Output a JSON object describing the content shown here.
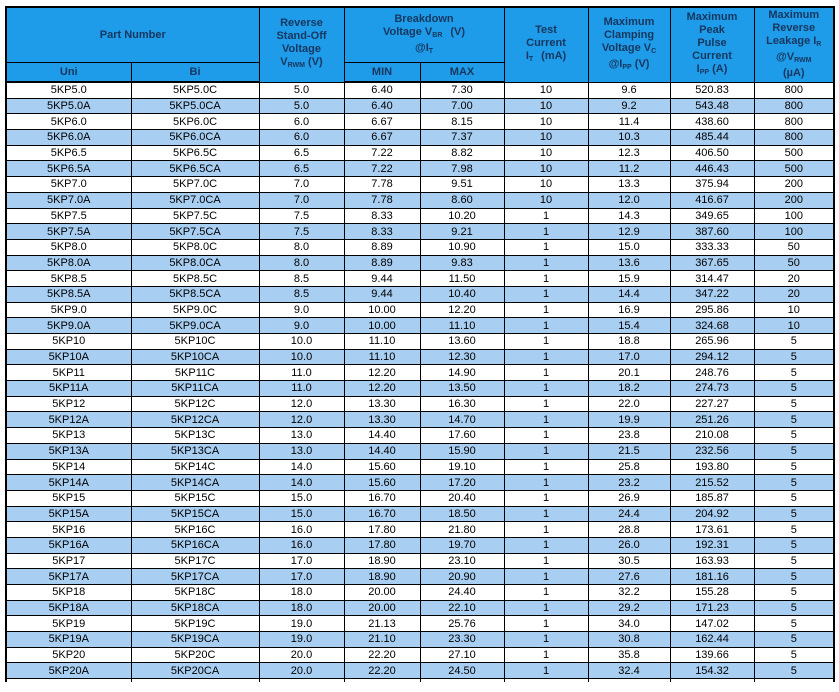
{
  "colors": {
    "header_bg": "#1E9BE9",
    "stripe_bg": "#A8CEF2",
    "header_text": "#17375E",
    "border": "#000000"
  },
  "table": {
    "header": {
      "part_number": {
        "title": "Part Number",
        "uni": "Uni",
        "bi": "Bi"
      },
      "vrwm": {
        "l1": "Reverse",
        "l2": "Stand-Off",
        "l3": "Voltage",
        "sym": "V",
        "sym_sub": "RWM",
        "unit": " (V)"
      },
      "vbr": {
        "l1": "Breakdown",
        "l2a": "Voltage V",
        "l2sub": "BR",
        "l2b": "(V)",
        "l3a": "@I",
        "l3sub": "T",
        "min": "MIN",
        "max": "MAX"
      },
      "it": {
        "l1": "Test",
        "l2": "Current",
        "l3a": "I",
        "l3sub": "T",
        "l3b": "(mA)"
      },
      "vc": {
        "l1": "Maximum",
        "l2": "Clamping",
        "l3a": "Voltage V",
        "l3sub": "C",
        "l4a": "@I",
        "l4sub": "PP",
        "l4b": " (V)"
      },
      "ipp": {
        "l1": "Maximum",
        "l2": "Peak",
        "l3": "Pulse",
        "l4": "Current",
        "l5a": "I",
        "l5sub": "PP",
        "l5b": " (A)"
      },
      "ir": {
        "l1": "Maximum",
        "l2": "Reverse",
        "l3a": "Leakage I",
        "l3sub": "R",
        "l4a": "@V",
        "l4sub": "RWM",
        "l5": "(µA)"
      }
    },
    "columns": [
      "part-uni",
      "part-bi",
      "vrwm",
      "vbr-min",
      "vbr-max",
      "test-current",
      "clamping-voltage",
      "peak-pulse-current",
      "reverse-leakage"
    ],
    "rows": [
      [
        "5KP5.0",
        "5KP5.0C",
        "5.0",
        "6.40",
        "7.30",
        "10",
        "9.6",
        "520.83",
        "800"
      ],
      [
        "5KP5.0A",
        "5KP5.0CA",
        "5.0",
        "6.40",
        "7.00",
        "10",
        "9.2",
        "543.48",
        "800"
      ],
      [
        "5KP6.0",
        "5KP6.0C",
        "6.0",
        "6.67",
        "8.15",
        "10",
        "11.4",
        "438.60",
        "800"
      ],
      [
        "5KP6.0A",
        "5KP6.0CA",
        "6.0",
        "6.67",
        "7.37",
        "10",
        "10.3",
        "485.44",
        "800"
      ],
      [
        "5KP6.5",
        "5KP6.5C",
        "6.5",
        "7.22",
        "8.82",
        "10",
        "12.3",
        "406.50",
        "500"
      ],
      [
        "5KP6.5A",
        "5KP6.5CA",
        "6.5",
        "7.22",
        "7.98",
        "10",
        "11.2",
        "446.43",
        "500"
      ],
      [
        "5KP7.0",
        "5KP7.0C",
        "7.0",
        "7.78",
        "9.51",
        "10",
        "13.3",
        "375.94",
        "200"
      ],
      [
        "5KP7.0A",
        "5KP7.0CA",
        "7.0",
        "7.78",
        "8.60",
        "10",
        "12.0",
        "416.67",
        "200"
      ],
      [
        "5KP7.5",
        "5KP7.5C",
        "7.5",
        "8.33",
        "10.20",
        "1",
        "14.3",
        "349.65",
        "100"
      ],
      [
        "5KP7.5A",
        "5KP7.5CA",
        "7.5",
        "8.33",
        "9.21",
        "1",
        "12.9",
        "387.60",
        "100"
      ],
      [
        "5KP8.0",
        "5KP8.0C",
        "8.0",
        "8.89",
        "10.90",
        "1",
        "15.0",
        "333.33",
        "50"
      ],
      [
        "5KP8.0A",
        "5KP8.0CA",
        "8.0",
        "8.89",
        "9.83",
        "1",
        "13.6",
        "367.65",
        "50"
      ],
      [
        "5KP8.5",
        "5KP8.5C",
        "8.5",
        "9.44",
        "11.50",
        "1",
        "15.9",
        "314.47",
        "20"
      ],
      [
        "5KP8.5A",
        "5KP8.5CA",
        "8.5",
        "9.44",
        "10.40",
        "1",
        "14.4",
        "347.22",
        "20"
      ],
      [
        "5KP9.0",
        "5KP9.0C",
        "9.0",
        "10.00",
        "12.20",
        "1",
        "16.9",
        "295.86",
        "10"
      ],
      [
        "5KP9.0A",
        "5KP9.0CA",
        "9.0",
        "10.00",
        "11.10",
        "1",
        "15.4",
        "324.68",
        "10"
      ],
      [
        "5KP10",
        "5KP10C",
        "10.0",
        "11.10",
        "13.60",
        "1",
        "18.8",
        "265.96",
        "5"
      ],
      [
        "5KP10A",
        "5KP10CA",
        "10.0",
        "11.10",
        "12.30",
        "1",
        "17.0",
        "294.12",
        "5"
      ],
      [
        "5KP11",
        "5KP11C",
        "11.0",
        "12.20",
        "14.90",
        "1",
        "20.1",
        "248.76",
        "5"
      ],
      [
        "5KP11A",
        "5KP11CA",
        "11.0",
        "12.20",
        "13.50",
        "1",
        "18.2",
        "274.73",
        "5"
      ],
      [
        "5KP12",
        "5KP12C",
        "12.0",
        "13.30",
        "16.30",
        "1",
        "22.0",
        "227.27",
        "5"
      ],
      [
        "5KP12A",
        "5KP12CA",
        "12.0",
        "13.30",
        "14.70",
        "1",
        "19.9",
        "251.26",
        "5"
      ],
      [
        "5KP13",
        "5KP13C",
        "13.0",
        "14.40",
        "17.60",
        "1",
        "23.8",
        "210.08",
        "5"
      ],
      [
        "5KP13A",
        "5KP13CA",
        "13.0",
        "14.40",
        "15.90",
        "1",
        "21.5",
        "232.56",
        "5"
      ],
      [
        "5KP14",
        "5KP14C",
        "14.0",
        "15.60",
        "19.10",
        "1",
        "25.8",
        "193.80",
        "5"
      ],
      [
        "5KP14A",
        "5KP14CA",
        "14.0",
        "15.60",
        "17.20",
        "1",
        "23.2",
        "215.52",
        "5"
      ],
      [
        "5KP15",
        "5KP15C",
        "15.0",
        "16.70",
        "20.40",
        "1",
        "26.9",
        "185.87",
        "5"
      ],
      [
        "5KP15A",
        "5KP15CA",
        "15.0",
        "16.70",
        "18.50",
        "1",
        "24.4",
        "204.92",
        "5"
      ],
      [
        "5KP16",
        "5KP16C",
        "16.0",
        "17.80",
        "21.80",
        "1",
        "28.8",
        "173.61",
        "5"
      ],
      [
        "5KP16A",
        "5KP16CA",
        "16.0",
        "17.80",
        "19.70",
        "1",
        "26.0",
        "192.31",
        "5"
      ],
      [
        "5KP17",
        "5KP17C",
        "17.0",
        "18.90",
        "23.10",
        "1",
        "30.5",
        "163.93",
        "5"
      ],
      [
        "5KP17A",
        "5KP17CA",
        "17.0",
        "18.90",
        "20.90",
        "1",
        "27.6",
        "181.16",
        "5"
      ],
      [
        "5KP18",
        "5KP18C",
        "18.0",
        "20.00",
        "24.40",
        "1",
        "32.2",
        "155.28",
        "5"
      ],
      [
        "5KP18A",
        "5KP18CA",
        "18.0",
        "20.00",
        "22.10",
        "1",
        "29.2",
        "171.23",
        "5"
      ],
      [
        "5KP19",
        "5KP19C",
        "19.0",
        "21.13",
        "25.76",
        "1",
        "34.0",
        "147.02",
        "5"
      ],
      [
        "5KP19A",
        "5KP19CA",
        "19.0",
        "21.10",
        "23.30",
        "1",
        "30.8",
        "162.44",
        "5"
      ],
      [
        "5KP20",
        "5KP20C",
        "20.0",
        "22.20",
        "27.10",
        "1",
        "35.8",
        "139.66",
        "5"
      ],
      [
        "5KP20A",
        "5KP20CA",
        "20.0",
        "22.20",
        "24.50",
        "1",
        "32.4",
        "154.32",
        "5"
      ]
    ]
  }
}
